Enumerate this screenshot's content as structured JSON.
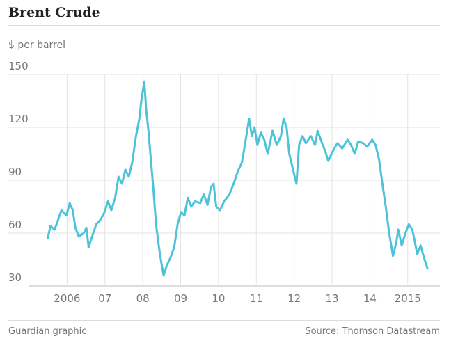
{
  "chart_data": {
    "type": "line",
    "title": "Brent Crude",
    "y_label": "$ per barrel",
    "credit": "Guardian graphic",
    "source": "Source: Thomson Datastream",
    "color": "#4dc3da",
    "grid": true,
    "x": [
      2005.49,
      2005.56,
      2005.67,
      2005.74,
      2005.85,
      2005.98,
      2006.07,
      2006.15,
      2006.22,
      2006.31,
      2006.44,
      2006.51,
      2006.57,
      2006.66,
      2006.77,
      2006.9,
      2006.99,
      2007.08,
      2007.17,
      2007.27,
      2007.36,
      2007.45,
      2007.54,
      2007.63,
      2007.72,
      2007.82,
      2007.91,
      2007.96,
      2008.04,
      2008.09,
      2008.15,
      2008.22,
      2008.28,
      2008.35,
      2008.44,
      2008.5,
      2008.55,
      2008.64,
      2008.73,
      2008.83,
      2008.92,
      2009.01,
      2009.1,
      2009.19,
      2009.28,
      2009.38,
      2009.52,
      2009.61,
      2009.71,
      2009.8,
      2009.87,
      2009.94,
      2010.04,
      2010.15,
      2010.29,
      2010.4,
      2010.51,
      2010.62,
      2010.72,
      2010.81,
      2010.88,
      2010.95,
      2011.03,
      2011.12,
      2011.21,
      2011.3,
      2011.43,
      2011.54,
      2011.65,
      2011.72,
      2011.8,
      2011.87,
      2011.98,
      2012.06,
      2012.13,
      2012.22,
      2012.31,
      2012.44,
      2012.55,
      2012.62,
      2012.72,
      2012.81,
      2012.9,
      2013.01,
      2013.14,
      2013.27,
      2013.41,
      2013.5,
      2013.6,
      2013.69,
      2013.82,
      2013.93,
      2014.06,
      2014.15,
      2014.24,
      2014.33,
      2014.42,
      2014.51,
      2014.61,
      2014.7,
      2014.75,
      2014.84,
      2014.94,
      2015.03,
      2015.12,
      2015.19,
      2015.25,
      2015.34,
      2015.43,
      2015.52
    ],
    "values": [
      57,
      64,
      62,
      66,
      73,
      70,
      77,
      73,
      63,
      58,
      60,
      63,
      52,
      58,
      65,
      68,
      72,
      78,
      73,
      80,
      92,
      88,
      96,
      92,
      100,
      115,
      125,
      135,
      146,
      130,
      118,
      100,
      85,
      65,
      50,
      42,
      36,
      42,
      46,
      52,
      65,
      72,
      70,
      80,
      75,
      78,
      77,
      82,
      76,
      86,
      88,
      75,
      73,
      78,
      82,
      88,
      95,
      100,
      113,
      125,
      115,
      120,
      110,
      117,
      113,
      105,
      118,
      110,
      115,
      125,
      120,
      105,
      95,
      88,
      110,
      115,
      111,
      115,
      110,
      118,
      112,
      107,
      101,
      106,
      111,
      108,
      113,
      110,
      105,
      112,
      111,
      109,
      113,
      110,
      102,
      88,
      75,
      60,
      47,
      55,
      62,
      53,
      60,
      65,
      62,
      55,
      48,
      53,
      46,
      40
    ],
    "xlim": [
      2005.0,
      2015.85
    ],
    "xticks": [
      2006,
      {
        "value": 2007,
        "label": "07"
      },
      {
        "value": 2008,
        "label": "08"
      },
      {
        "value": 2009,
        "label": "09"
      },
      {
        "value": 2010,
        "label": "10"
      },
      {
        "value": 2011,
        "label": "11"
      },
      {
        "value": 2012,
        "label": "12"
      },
      {
        "value": 2013,
        "label": "13"
      },
      {
        "value": 2014,
        "label": "14"
      },
      2015
    ],
    "ylim": [
      30,
      150
    ],
    "yticks": [
      30,
      60,
      90,
      120,
      150
    ]
  }
}
